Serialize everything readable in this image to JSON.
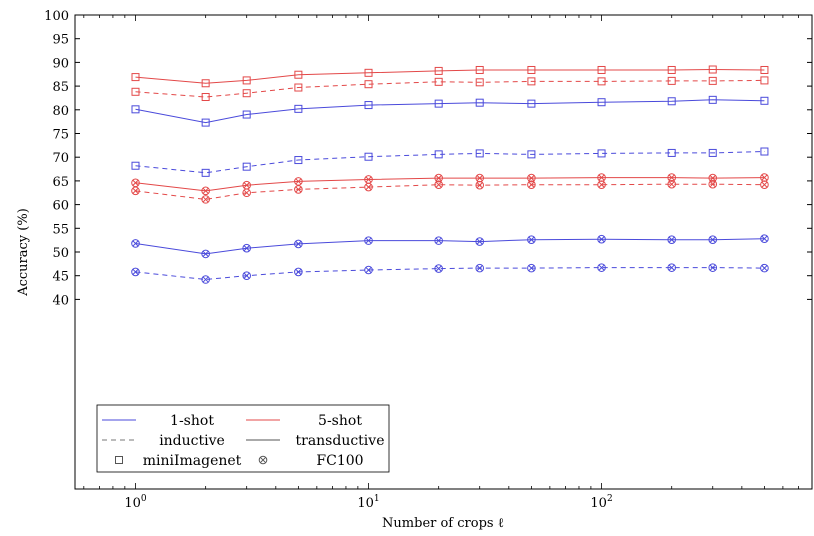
{
  "chart_data": {
    "type": "line",
    "xlabel": "Number of crops ℓ",
    "ylabel": "Accuracy (%)",
    "xscale": "log",
    "xlim": [
      0.55,
      800
    ],
    "ylim": [
      0,
      100
    ],
    "yticks": [
      40,
      45,
      50,
      55,
      60,
      65,
      70,
      75,
      80,
      85,
      90,
      95,
      100
    ],
    "xticks": [
      {
        "value": 1,
        "base": "10",
        "exp": "0"
      },
      {
        "value": 10,
        "base": "10",
        "exp": "1"
      },
      {
        "value": 100,
        "base": "10",
        "exp": "2"
      }
    ],
    "x": [
      1,
      2,
      3,
      5,
      10,
      20,
      30,
      50,
      100,
      200,
      300,
      500
    ],
    "colors": {
      "one_shot": "#4a4adb",
      "five_shot": "#e34848"
    },
    "grid": false,
    "legend_position": "bottom-left",
    "series": [
      {
        "shot": "5-shot",
        "mode": "transductive",
        "dataset": "miniImagenet",
        "color": "#e34848",
        "dash": "solid",
        "marker": "square",
        "values": [
          86.9,
          85.6,
          86.2,
          87.4,
          87.8,
          88.2,
          88.4,
          88.4,
          88.4,
          88.4,
          88.5,
          88.4
        ]
      },
      {
        "shot": "5-shot",
        "mode": "inductive",
        "dataset": "miniImagenet",
        "color": "#e34848",
        "dash": "dashed",
        "marker": "square",
        "values": [
          83.8,
          82.7,
          83.5,
          84.7,
          85.4,
          85.9,
          85.8,
          86.0,
          86.0,
          86.1,
          86.1,
          86.2
        ]
      },
      {
        "shot": "1-shot",
        "mode": "transductive",
        "dataset": "miniImagenet",
        "color": "#4a4adb",
        "dash": "solid",
        "marker": "square",
        "values": [
          80.1,
          77.3,
          79.0,
          80.2,
          81.0,
          81.3,
          81.5,
          81.3,
          81.6,
          81.8,
          82.1,
          81.9
        ]
      },
      {
        "shot": "1-shot",
        "mode": "inductive",
        "dataset": "miniImagenet",
        "color": "#4a4adb",
        "dash": "dashed",
        "marker": "square",
        "values": [
          68.2,
          66.7,
          68.0,
          69.4,
          70.1,
          70.6,
          70.8,
          70.6,
          70.8,
          70.9,
          70.9,
          71.2
        ]
      },
      {
        "shot": "5-shot",
        "mode": "transductive",
        "dataset": "FC100",
        "color": "#e34848",
        "dash": "solid",
        "marker": "circle-x",
        "values": [
          64.6,
          62.9,
          64.1,
          64.9,
          65.3,
          65.6,
          65.6,
          65.6,
          65.7,
          65.7,
          65.6,
          65.7
        ]
      },
      {
        "shot": "5-shot",
        "mode": "inductive",
        "dataset": "FC100",
        "color": "#e34848",
        "dash": "dashed",
        "marker": "circle-x",
        "values": [
          62.9,
          61.1,
          62.5,
          63.2,
          63.7,
          64.2,
          64.1,
          64.2,
          64.2,
          64.3,
          64.3,
          64.2
        ]
      },
      {
        "shot": "1-shot",
        "mode": "transductive",
        "dataset": "FC100",
        "color": "#4a4adb",
        "dash": "solid",
        "marker": "circle-x",
        "values": [
          51.8,
          49.6,
          50.8,
          51.7,
          52.4,
          52.4,
          52.2,
          52.6,
          52.7,
          52.6,
          52.6,
          52.8
        ]
      },
      {
        "shot": "1-shot",
        "mode": "inductive",
        "dataset": "FC100",
        "color": "#4a4adb",
        "dash": "dashed",
        "marker": "circle-x",
        "values": [
          45.8,
          44.2,
          45.0,
          45.8,
          46.2,
          46.5,
          46.6,
          46.6,
          46.7,
          46.7,
          46.7,
          46.6
        ]
      }
    ],
    "legend": {
      "items": [
        {
          "label": "1-shot",
          "symbol": "solid-line",
          "color": "#4a4adb"
        },
        {
          "label": "5-shot",
          "symbol": "solid-line",
          "color": "#e34848"
        },
        {
          "label": "inductive",
          "symbol": "dashed-line",
          "color": "#777777"
        },
        {
          "label": "transductive",
          "symbol": "solid-line",
          "color": "#555555"
        },
        {
          "label": "miniImagenet",
          "symbol": "square",
          "color": "#555555"
        },
        {
          "label": "FC100",
          "symbol": "circle-x",
          "color": "#555555"
        }
      ]
    }
  }
}
